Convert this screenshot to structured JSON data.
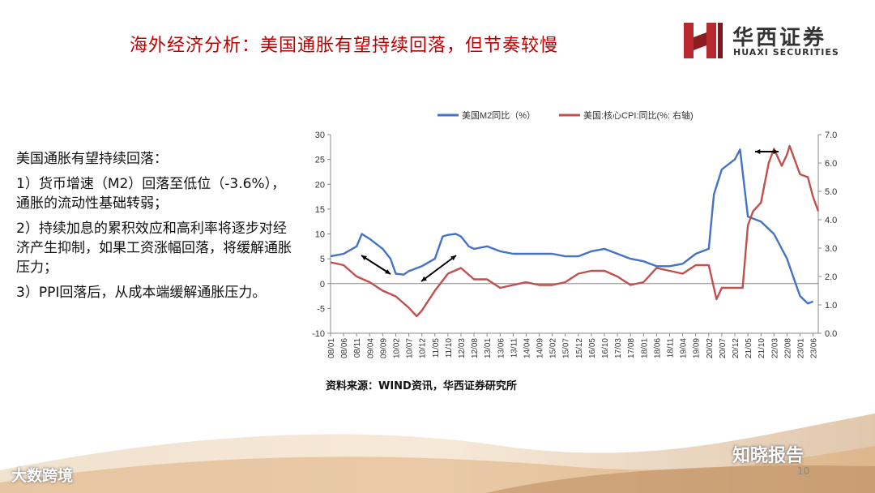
{
  "slide": {
    "title": "海外经济分析：美国通胀有望持续回落，但节奏较慢",
    "logo_cn": "华西证券",
    "logo_en": "HUAXI SECURITIES",
    "bullets": [
      "美国通胀有望持续回落：",
      "1）货币增速（M2）回落至低位（-3.6%），通胀的流动性基础转弱；",
      "2）持续加息的累积效应和高利率将逐步对经济产生抑制，如果工资涨幅回落，将缓解通胀压力；",
      "3）PPI回落后，从成本端缓解通胀压力。"
    ],
    "source": "资料来源：WIND资讯，华西证券研究所",
    "page_number": "10",
    "watermark_left": "大数跨境",
    "watermark_right": "知晓报告",
    "colors": {
      "title": "#c00000",
      "m2": "#4472c4",
      "cpi": "#c0504d",
      "logo_red": "#b8292f"
    }
  },
  "chart_data": {
    "type": "line",
    "x_ticks": [
      "08/01",
      "08/06",
      "08/11",
      "09/04",
      "09/09",
      "10/02",
      "10/07",
      "10/12",
      "11/05",
      "11/10",
      "12/03",
      "12/08",
      "13/01",
      "13/06",
      "13/11",
      "14/04",
      "14/09",
      "15/02",
      "15/07",
      "15/12",
      "16/05",
      "16/10",
      "17/03",
      "17/08",
      "18/01",
      "18/06",
      "18/11",
      "19/04",
      "19/09",
      "20/02",
      "20/07",
      "20/12",
      "21/05",
      "21/10",
      "22/03",
      "22/08",
      "23/01",
      "23/06"
    ],
    "left_axis": {
      "ylim": [
        -10,
        30
      ],
      "ticks": [
        "30",
        "25",
        "20",
        "15",
        "10",
        "5",
        "0",
        "-5",
        "-10"
      ]
    },
    "right_axis": {
      "ylim": [
        0.0,
        7.0
      ],
      "ticks": [
        "7.0",
        "6.0",
        "5.0",
        "4.0",
        "3.0",
        "2.0",
        "1.0",
        "0.0"
      ]
    },
    "legend_position": "top",
    "series": [
      {
        "name": "美国M2同比（%）",
        "axis": "left",
        "color": "#4472c4",
        "points": [
          [
            "08/01",
            5.5
          ],
          [
            "08/06",
            6.0
          ],
          [
            "08/11",
            7.5
          ],
          [
            "09/01",
            10.0
          ],
          [
            "09/04",
            9.0
          ],
          [
            "09/09",
            7.0
          ],
          [
            "09/12",
            5.0
          ],
          [
            "10/02",
            2.0
          ],
          [
            "10/05",
            1.8
          ],
          [
            "10/07",
            2.5
          ],
          [
            "10/12",
            3.5
          ],
          [
            "11/05",
            5.0
          ],
          [
            "11/08",
            9.5
          ],
          [
            "11/10",
            9.8
          ],
          [
            "12/01",
            10.0
          ],
          [
            "12/03",
            9.5
          ],
          [
            "12/06",
            7.5
          ],
          [
            "12/08",
            7.0
          ],
          [
            "13/01",
            7.5
          ],
          [
            "13/06",
            6.5
          ],
          [
            "13/11",
            6.0
          ],
          [
            "14/04",
            6.0
          ],
          [
            "14/09",
            6.0
          ],
          [
            "15/02",
            6.0
          ],
          [
            "15/07",
            5.5
          ],
          [
            "15/12",
            5.5
          ],
          [
            "16/05",
            6.5
          ],
          [
            "16/10",
            7.0
          ],
          [
            "17/03",
            6.0
          ],
          [
            "17/08",
            5.0
          ],
          [
            "18/01",
            4.5
          ],
          [
            "18/06",
            3.5
          ],
          [
            "18/11",
            3.5
          ],
          [
            "19/04",
            4.0
          ],
          [
            "19/09",
            6.0
          ],
          [
            "20/02",
            7.0
          ],
          [
            "20/04",
            18.0
          ],
          [
            "20/07",
            23.0
          ],
          [
            "20/12",
            25.0
          ],
          [
            "21/02",
            27.0
          ],
          [
            "21/05",
            13.5
          ],
          [
            "21/10",
            12.5
          ],
          [
            "22/03",
            10.0
          ],
          [
            "22/08",
            5.0
          ],
          [
            "22/12",
            -1.0
          ],
          [
            "23/01",
            -2.5
          ],
          [
            "23/04",
            -4.0
          ],
          [
            "23/06",
            -3.6
          ]
        ]
      },
      {
        "name": "美国:核心CPI:同比(%: 右轴)",
        "axis": "right",
        "color": "#c0504d",
        "points": [
          [
            "08/01",
            2.5
          ],
          [
            "08/06",
            2.4
          ],
          [
            "08/11",
            2.0
          ],
          [
            "09/04",
            1.8
          ],
          [
            "09/09",
            1.5
          ],
          [
            "10/02",
            1.3
          ],
          [
            "10/07",
            0.9
          ],
          [
            "10/10",
            0.6
          ],
          [
            "10/12",
            0.8
          ],
          [
            "11/05",
            1.5
          ],
          [
            "11/10",
            2.1
          ],
          [
            "12/03",
            2.3
          ],
          [
            "12/08",
            1.9
          ],
          [
            "13/01",
            1.9
          ],
          [
            "13/06",
            1.6
          ],
          [
            "13/11",
            1.7
          ],
          [
            "14/04",
            1.8
          ],
          [
            "14/09",
            1.7
          ],
          [
            "15/02",
            1.7
          ],
          [
            "15/07",
            1.8
          ],
          [
            "15/12",
            2.1
          ],
          [
            "16/05",
            2.2
          ],
          [
            "16/10",
            2.2
          ],
          [
            "17/03",
            2.0
          ],
          [
            "17/08",
            1.7
          ],
          [
            "18/01",
            1.8
          ],
          [
            "18/06",
            2.3
          ],
          [
            "18/11",
            2.2
          ],
          [
            "19/04",
            2.1
          ],
          [
            "19/09",
            2.4
          ],
          [
            "20/02",
            2.4
          ],
          [
            "20/05",
            1.2
          ],
          [
            "20/07",
            1.6
          ],
          [
            "20/12",
            1.6
          ],
          [
            "21/03",
            1.6
          ],
          [
            "21/05",
            3.8
          ],
          [
            "21/07",
            4.3
          ],
          [
            "21/10",
            4.6
          ],
          [
            "22/01",
            6.0
          ],
          [
            "22/03",
            6.5
          ],
          [
            "22/06",
            5.9
          ],
          [
            "22/08",
            6.3
          ],
          [
            "22/09",
            6.6
          ],
          [
            "23/01",
            5.6
          ],
          [
            "23/04",
            5.5
          ],
          [
            "23/06",
            4.8
          ],
          [
            "23/08",
            4.3
          ]
        ]
      }
    ]
  }
}
